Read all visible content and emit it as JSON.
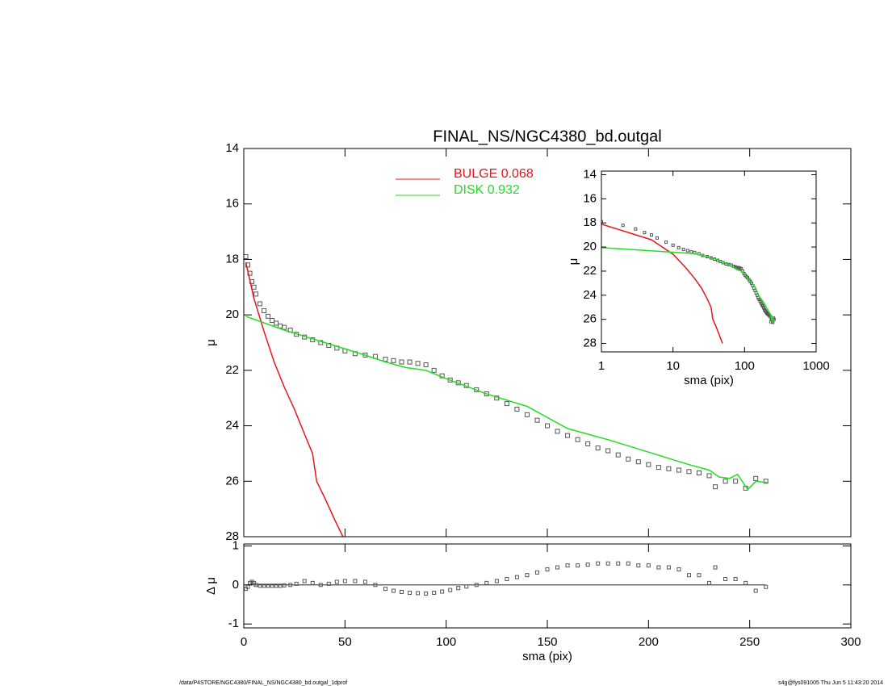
{
  "chart_data": [
    {
      "type": "profile",
      "title": "FINAL_NS/NGC4380_bd.outgal",
      "ylabel": "μ",
      "xlim": [
        0,
        300
      ],
      "xticks": [
        0,
        50,
        100,
        150,
        200,
        250,
        300
      ],
      "ylim": [
        14,
        28
      ],
      "yticks": [
        14,
        16,
        18,
        20,
        22,
        24,
        26,
        28
      ],
      "y_reversed": true,
      "show_xtick_labels": false,
      "series": [
        {
          "marker": "square",
          "color": "#555555",
          "x": [
            1,
            2,
            3,
            4,
            5,
            6,
            8,
            10,
            12,
            14,
            16,
            18,
            20,
            23,
            26,
            30,
            34,
            38,
            42,
            46,
            50,
            55,
            60,
            65,
            70,
            74,
            78,
            82,
            86,
            90,
            94,
            98,
            102,
            106,
            110,
            115,
            120,
            125,
            130,
            135,
            140,
            145,
            150,
            155,
            160,
            165,
            170,
            175,
            180,
            185,
            190,
            195,
            200,
            205,
            210,
            215,
            220,
            225,
            230,
            233,
            238,
            243,
            248,
            253,
            258
          ],
          "values": [
            17.9,
            18.2,
            18.5,
            18.8,
            19.0,
            19.25,
            19.6,
            19.85,
            20.05,
            20.2,
            20.3,
            20.4,
            20.45,
            20.55,
            20.7,
            20.8,
            20.9,
            21.0,
            21.1,
            21.2,
            21.3,
            21.4,
            21.45,
            21.5,
            21.6,
            21.65,
            21.7,
            21.7,
            21.75,
            21.8,
            22.0,
            22.2,
            22.35,
            22.45,
            22.55,
            22.7,
            22.85,
            23.0,
            23.2,
            23.4,
            23.6,
            23.8,
            24.0,
            24.2,
            24.35,
            24.5,
            24.65,
            24.8,
            24.9,
            25.05,
            25.2,
            25.3,
            25.4,
            25.5,
            25.55,
            25.6,
            25.65,
            25.7,
            25.8,
            26.2,
            26.0,
            26.0,
            26.25,
            25.9,
            26.0
          ]
        },
        {
          "name": "BULGE  0.068",
          "color": "#e8141c",
          "x": [
            1,
            5,
            10,
            15,
            20,
            25,
            30,
            34,
            36,
            40,
            45,
            49
          ],
          "values": [
            18.1,
            19.4,
            20.6,
            21.7,
            22.6,
            23.4,
            24.3,
            25.0,
            26.0,
            26.6,
            27.4,
            28.0
          ]
        },
        {
          "name": "DISK  0.932",
          "color": "#22dd22",
          "x": [
            1,
            20,
            40,
            60,
            70,
            80,
            90,
            100,
            120,
            140,
            160,
            180,
            200,
            220,
            230,
            235,
            240,
            244,
            249,
            253,
            259
          ],
          "values": [
            20.05,
            20.55,
            21.0,
            21.45,
            21.7,
            21.9,
            22.0,
            22.3,
            22.85,
            23.3,
            24.1,
            24.5,
            24.95,
            25.4,
            25.6,
            25.85,
            25.9,
            25.75,
            26.3,
            26.0,
            26.05
          ]
        }
      ]
    },
    {
      "type": "inset",
      "xlabel": "sma (pix)",
      "ylabel": "μ",
      "log_x": true,
      "xlim": [
        1,
        1000
      ],
      "xticks": [
        1,
        10,
        100,
        1000
      ],
      "ylim": [
        13.7,
        28.7
      ],
      "yticks": [
        14,
        16,
        18,
        20,
        22,
        24,
        26,
        28
      ],
      "y_reversed": true
    },
    {
      "type": "residual",
      "xlabel": "sma (pix)",
      "ylabel": "Δ μ",
      "xlim": [
        0,
        300
      ],
      "xticks": [
        0,
        50,
        100,
        150,
        200,
        250,
        300
      ],
      "ylim": [
        -1.1,
        1.05
      ],
      "yticks": [
        -1,
        0,
        1
      ],
      "reference_line": 0,
      "color": "#555555",
      "x": [
        1,
        2,
        3,
        4,
        5,
        6,
        8,
        10,
        12,
        14,
        16,
        18,
        20,
        23,
        26,
        30,
        34,
        38,
        42,
        46,
        50,
        55,
        60,
        65,
        70,
        74,
        78,
        82,
        86,
        90,
        94,
        98,
        102,
        106,
        110,
        115,
        120,
        125,
        130,
        135,
        140,
        145,
        150,
        155,
        160,
        165,
        170,
        175,
        180,
        185,
        190,
        195,
        200,
        205,
        210,
        215,
        220,
        225,
        230,
        233,
        238,
        243,
        248,
        253,
        258
      ],
      "values": [
        -0.1,
        -0.05,
        0.05,
        0.08,
        0.05,
        0.0,
        -0.02,
        -0.02,
        -0.02,
        -0.02,
        -0.02,
        -0.02,
        -0.01,
        0.0,
        0.03,
        0.1,
        0.05,
        0.0,
        0.03,
        0.08,
        0.1,
        0.1,
        0.08,
        0.0,
        -0.1,
        -0.15,
        -0.18,
        -0.2,
        -0.21,
        -0.22,
        -0.2,
        -0.17,
        -0.13,
        -0.08,
        -0.04,
        0.0,
        0.05,
        0.1,
        0.15,
        0.2,
        0.25,
        0.32,
        0.4,
        0.45,
        0.5,
        0.5,
        0.52,
        0.55,
        0.55,
        0.55,
        0.55,
        0.5,
        0.5,
        0.45,
        0.45,
        0.4,
        0.25,
        0.25,
        0.05,
        0.45,
        0.15,
        0.15,
        0.05,
        -0.15,
        -0.05
      ]
    }
  ],
  "footer": {
    "left": "/data/P4STORE/NGC4380/FINAL_NS/NGC4380_bd.outgal_1dprof",
    "right": "s4g@fys091005  Thu Jun  5 11:43:20 2014"
  }
}
